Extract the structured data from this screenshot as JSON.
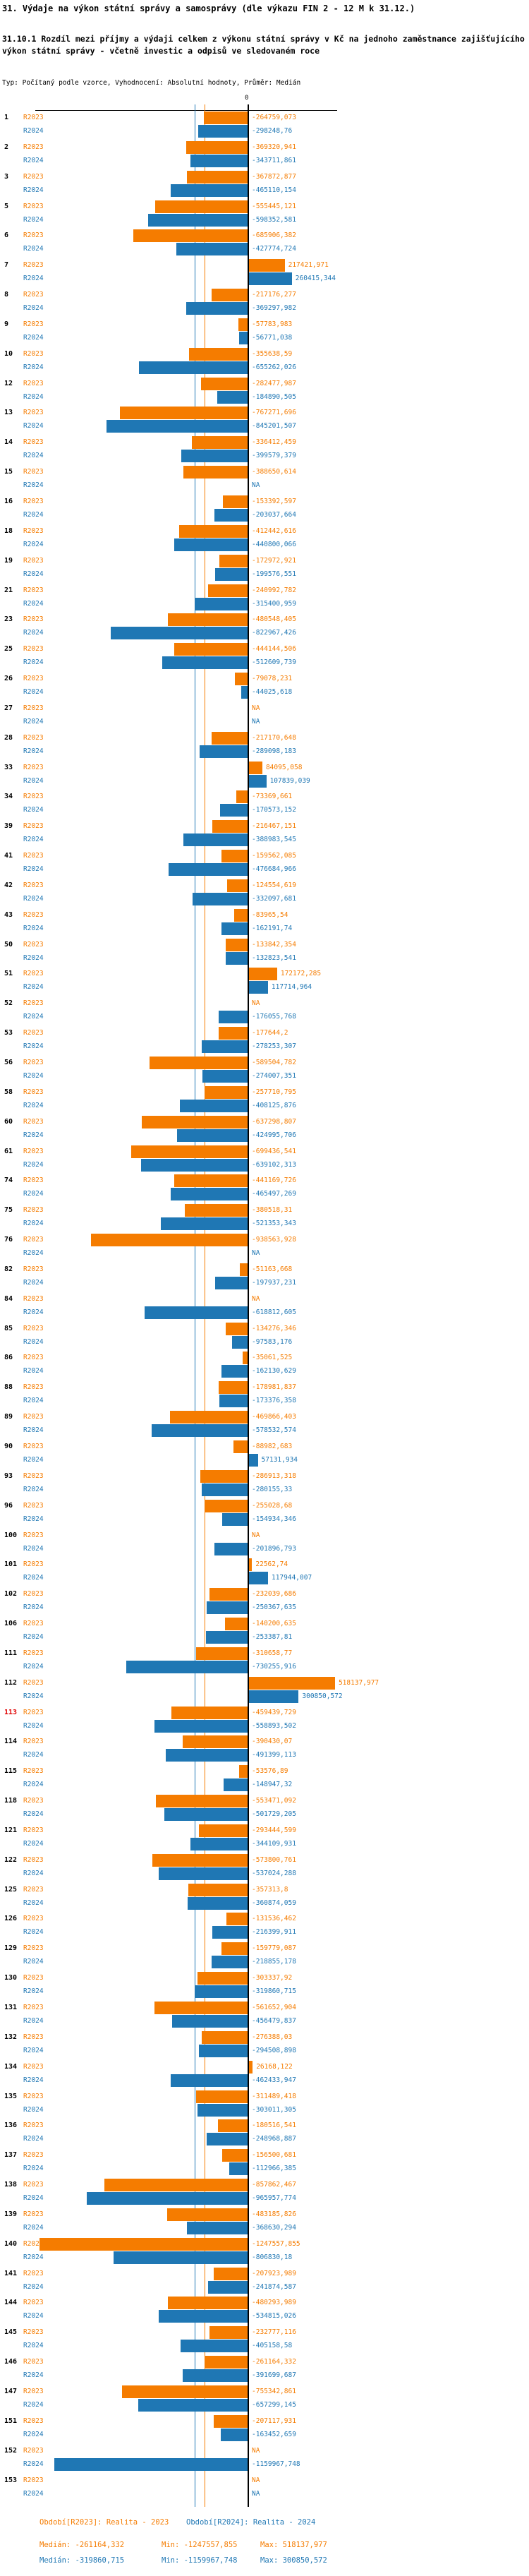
{
  "header": {
    "title": "31. Výdaje na výkon státní správy a samosprávy (dle výkazu FIN 2 - 12 M k 31.12.)",
    "subtitle": "31.10.1 Rozdíl mezi příjmy a výdaji celkem z výkonu státní správy v Kč na jednoho zaměstnance zajišťujícího výkon státní správy - včetně investic a odpisů ve sledovaném roce",
    "meta": "Typ: Počítaný podle vzorce, Vyhodnocení: Absolutní hodnoty, Průměr: Medián"
  },
  "chart_data": {
    "type": "bar",
    "orientation": "horizontal",
    "series_labels": {
      "r2023": "R2023",
      "r2024": "R2024"
    },
    "colors": {
      "r2023": "#F57C00",
      "r2024": "#1F77B4",
      "axis": "#000000",
      "highlight_row": "#E00000"
    },
    "axis": {
      "zero_label": "0",
      "xlim": [
        -1272000,
        540000
      ],
      "na_text": "NA"
    },
    "medians": {
      "r2023": -261164.332,
      "r2024": -319860.715
    },
    "rows": [
      {
        "id": "1",
        "r2023": "-264759,073",
        "r2024": "-298248,76"
      },
      {
        "id": "2",
        "r2023": "-369320,941",
        "r2024": "-343711,861"
      },
      {
        "id": "3",
        "r2023": "-367872,877",
        "r2024": "-465110,154"
      },
      {
        "id": "5",
        "r2023": "-555445,121",
        "r2024": "-598352,581"
      },
      {
        "id": "6",
        "r2023": "-685906,382",
        "r2024": "-427774,724"
      },
      {
        "id": "7",
        "r2023": "217421,971",
        "r2024": "260415,344"
      },
      {
        "id": "8",
        "r2023": "-217176,277",
        "r2024": "-369297,982"
      },
      {
        "id": "9",
        "r2023": "-57783,983",
        "r2024": "-56771,038"
      },
      {
        "id": "10",
        "r2023": "-355638,59",
        "r2024": "-655262,026"
      },
      {
        "id": "12",
        "r2023": "-282477,987",
        "r2024": "-184890,505"
      },
      {
        "id": "13",
        "r2023": "-767271,696",
        "r2024": "-845201,507"
      },
      {
        "id": "14",
        "r2023": "-336412,459",
        "r2024": "-399579,379"
      },
      {
        "id": "15",
        "r2023": "-388650,614",
        "r2024": "NA"
      },
      {
        "id": "16",
        "r2023": "-153392,597",
        "r2024": "-203037,664"
      },
      {
        "id": "18",
        "r2023": "-412442,616",
        "r2024": "-440800,066"
      },
      {
        "id": "19",
        "r2023": "-172972,921",
        "r2024": "-199576,551"
      },
      {
        "id": "21",
        "r2023": "-240992,782",
        "r2024": "-315400,959"
      },
      {
        "id": "23",
        "r2023": "-480548,405",
        "r2024": "-822967,426"
      },
      {
        "id": "25",
        "r2023": "-444144,506",
        "r2024": "-512609,739"
      },
      {
        "id": "26",
        "r2023": "-79078,231",
        "r2024": "-44025,618"
      },
      {
        "id": "27",
        "r2023": "NA",
        "r2024": "NA"
      },
      {
        "id": "28",
        "r2023": "-217170,648",
        "r2024": "-289098,183"
      },
      {
        "id": "33",
        "r2023": "84095,058",
        "r2024": "107839,039"
      },
      {
        "id": "34",
        "r2023": "-73369,661",
        "r2024": "-170573,152"
      },
      {
        "id": "39",
        "r2023": "-216467,151",
        "r2024": "-388983,545"
      },
      {
        "id": "41",
        "r2023": "-159562,085",
        "r2024": "-476684,966"
      },
      {
        "id": "42",
        "r2023": "-124554,619",
        "r2024": "-332097,681"
      },
      {
        "id": "43",
        "r2023": "-83965,54",
        "r2024": "-162191,74"
      },
      {
        "id": "50",
        "r2023": "-133842,354",
        "r2024": "-132823,541"
      },
      {
        "id": "51",
        "r2023": "172172,285",
        "r2024": "117714,964"
      },
      {
        "id": "52",
        "r2023": "NA",
        "r2024": "-176055,768"
      },
      {
        "id": "53",
        "r2023": "-177644,2",
        "r2024": "-278253,307"
      },
      {
        "id": "56",
        "r2023": "-589504,782",
        "r2024": "-274007,351"
      },
      {
        "id": "58",
        "r2023": "-257710,795",
        "r2024": "-408125,876"
      },
      {
        "id": "60",
        "r2023": "-637298,807",
        "r2024": "-424995,706"
      },
      {
        "id": "61",
        "r2023": "-699436,541",
        "r2024": "-639102,313"
      },
      {
        "id": "74",
        "r2023": "-441169,726",
        "r2024": "-465497,269"
      },
      {
        "id": "75",
        "r2023": "-380518,31",
        "r2024": "-521353,343"
      },
      {
        "id": "76",
        "r2023": "-938563,928",
        "r2024": "NA"
      },
      {
        "id": "82",
        "r2023": "-51163,668",
        "r2024": "-197937,231"
      },
      {
        "id": "84",
        "r2023": "NA",
        "r2024": "-618812,605"
      },
      {
        "id": "85",
        "r2023": "-134276,346",
        "r2024": "-97583,176"
      },
      {
        "id": "86",
        "r2023": "-35061,525",
        "r2024": "-162130,629"
      },
      {
        "id": "88",
        "r2023": "-178981,837",
        "r2024": "-173376,358"
      },
      {
        "id": "89",
        "r2023": "-469866,403",
        "r2024": "-578532,574"
      },
      {
        "id": "90",
        "r2023": "-88982,683",
        "r2024": "57131,934"
      },
      {
        "id": "93",
        "r2023": "-286913,318",
        "r2024": "-280155,33"
      },
      {
        "id": "96",
        "r2023": "-255028,68",
        "r2024": "-154934,346"
      },
      {
        "id": "100",
        "r2023": "NA",
        "r2024": "-201896,793"
      },
      {
        "id": "101",
        "r2023": "22562,74",
        "r2024": "117944,007"
      },
      {
        "id": "102",
        "r2023": "-232039,686",
        "r2024": "-250367,635"
      },
      {
        "id": "106",
        "r2023": "-140200,635",
        "r2024": "-253387,81"
      },
      {
        "id": "111",
        "r2023": "-310658,77",
        "r2024": "-730255,916"
      },
      {
        "id": "112",
        "r2023": "518137,977",
        "r2024": "300850,572"
      },
      {
        "id": "113",
        "r2023": "-459439,729",
        "r2024": "-558893,502",
        "highlight": true
      },
      {
        "id": "114",
        "r2023": "-390430,07",
        "r2024": "-491399,113"
      },
      {
        "id": "115",
        "r2023": "-53576,89",
        "r2024": "-148947,32"
      },
      {
        "id": "118",
        "r2023": "-553471,092",
        "r2024": "-501729,205"
      },
      {
        "id": "121",
        "r2023": "-293444,599",
        "r2024": "-344109,931"
      },
      {
        "id": "122",
        "r2023": "-573800,761",
        "r2024": "-537024,288"
      },
      {
        "id": "125",
        "r2023": "-357313,8",
        "r2024": "-360874,059"
      },
      {
        "id": "126",
        "r2023": "-131536,462",
        "r2024": "-216399,911"
      },
      {
        "id": "129",
        "r2023": "-159779,087",
        "r2024": "-218855,178"
      },
      {
        "id": "130",
        "r2023": "-303337,92",
        "r2024": "-319860,715"
      },
      {
        "id": "131",
        "r2023": "-561652,904",
        "r2024": "-456479,837"
      },
      {
        "id": "132",
        "r2023": "-276388,03",
        "r2024": "-294508,898"
      },
      {
        "id": "134",
        "r2023": "26168,122",
        "r2024": "-462433,947"
      },
      {
        "id": "135",
        "r2023": "-311489,418",
        "r2024": "-303011,305"
      },
      {
        "id": "136",
        "r2023": "-180516,541",
        "r2024": "-248968,887"
      },
      {
        "id": "137",
        "r2023": "-156500,681",
        "r2024": "-112966,385"
      },
      {
        "id": "138",
        "r2023": "-857862,467",
        "r2024": "-965957,774"
      },
      {
        "id": "139",
        "r2023": "-483185,826",
        "r2024": "-368630,294"
      },
      {
        "id": "140",
        "r2023": "-1247557,855",
        "r2024": "-806830,18"
      },
      {
        "id": "141",
        "r2023": "-207923,989",
        "r2024": "-241874,587"
      },
      {
        "id": "144",
        "r2023": "-480293,989",
        "r2024": "-534815,026"
      },
      {
        "id": "145",
        "r2023": "-232777,116",
        "r2024": "-405158,58"
      },
      {
        "id": "146",
        "r2023": "-261164,332",
        "r2024": "-391699,687"
      },
      {
        "id": "147",
        "r2023": "-755342,861",
        "r2024": "-657299,145"
      },
      {
        "id": "151",
        "r2023": "-207117,931",
        "r2024": "-163452,659"
      },
      {
        "id": "152",
        "r2023": "NA",
        "r2024": "-1159967,748"
      },
      {
        "id": "153",
        "r2023": "NA",
        "r2024": "NA"
      }
    ]
  },
  "footer": {
    "legend_r2023": "Období[R2023]: Realita - 2023",
    "legend_r2024": "Období[R2024]: Realita - 2024",
    "stats_r2023": {
      "median": "Medián: -261164,332",
      "min": "Min: -1247557,855",
      "max": "Max: 518137,977"
    },
    "stats_r2024": {
      "median": "Medián: -319860,715",
      "min": "Min: -1159967,748",
      "max": "Max: 300850,572"
    }
  }
}
